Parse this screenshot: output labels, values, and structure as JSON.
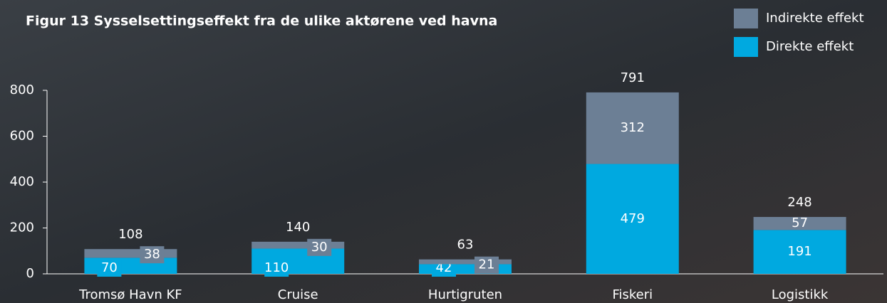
{
  "chart_data": {
    "type": "stacked_bar",
    "title": "Figur 13 Sysselsettingseffekt fra de ulike aktørene ved havna",
    "categories": [
      "Tromsø Havn KF",
      "Cruise",
      "Hurtigruten",
      "Fiskeri",
      "Logistikk"
    ],
    "series": [
      {
        "name": "Direkte effekt",
        "color": "#00a9e0",
        "values": [
          70,
          110,
          42,
          479,
          191
        ]
      },
      {
        "name": "Indirekte effekt",
        "color": "#6c7f95",
        "values": [
          38,
          30,
          21,
          312,
          57
        ]
      }
    ],
    "totals": [
      108,
      140,
      63,
      791,
      248
    ],
    "ylim": [
      0,
      800
    ],
    "yticks": [
      0,
      200,
      400,
      600,
      800
    ]
  }
}
